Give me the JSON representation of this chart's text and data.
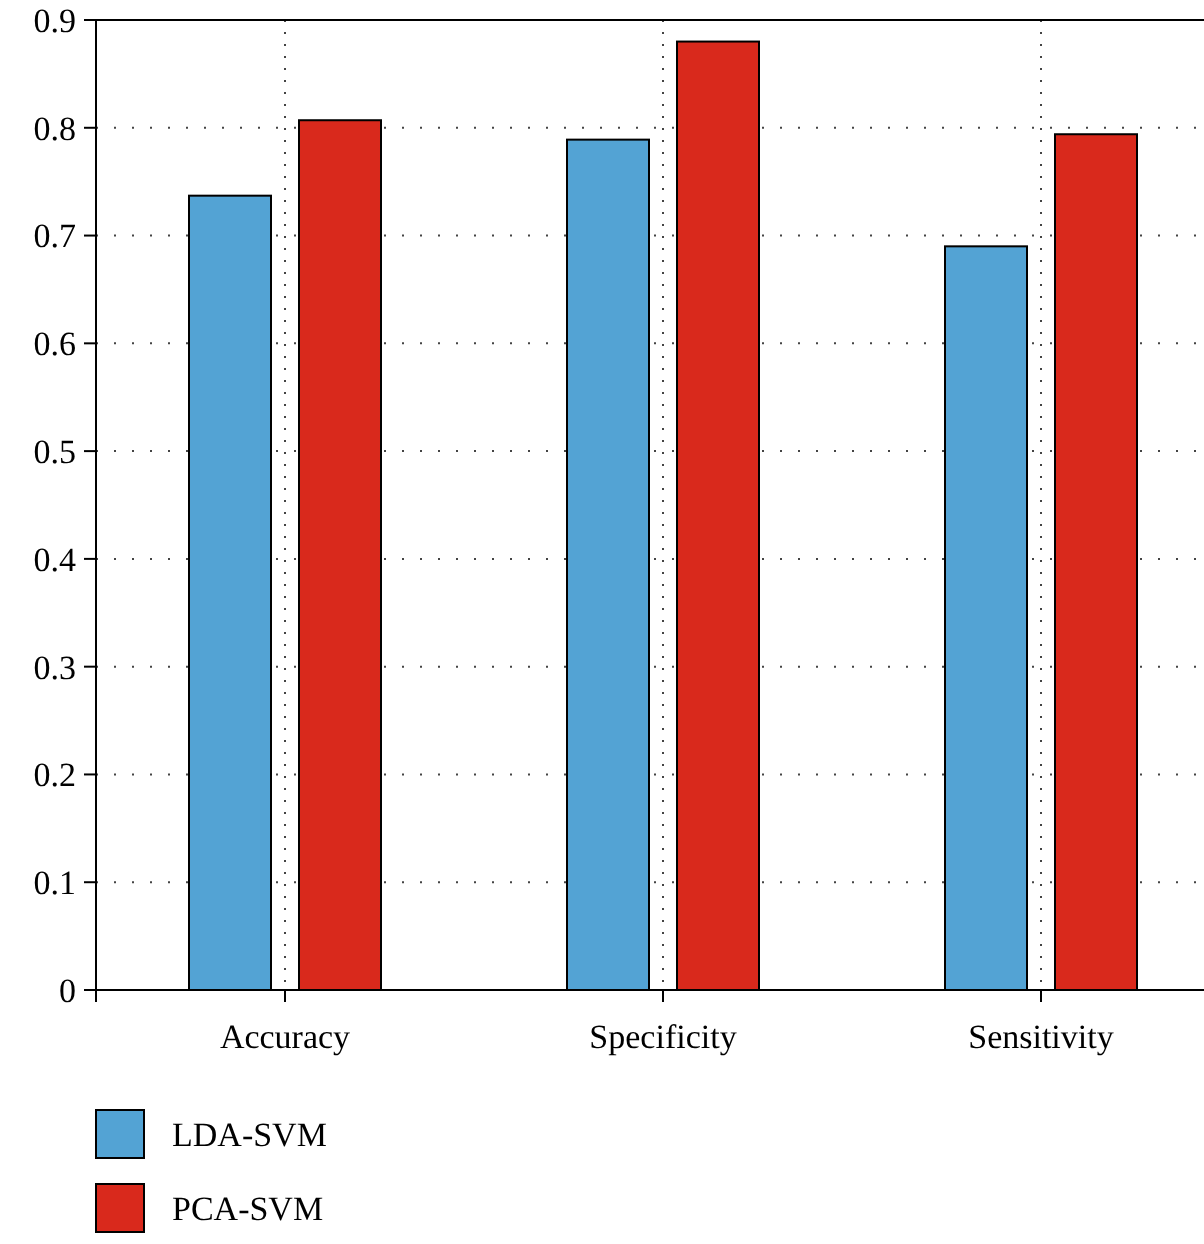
{
  "chart_data": {
    "type": "bar",
    "categories": [
      "Accuracy",
      "Specificity",
      "Sensitivity"
    ],
    "series": [
      {
        "name": "LDA-SVM",
        "color": "#53a3d4",
        "values": [
          0.737,
          0.789,
          0.69
        ]
      },
      {
        "name": "PCA-SVM",
        "color": "#d9291c",
        "values": [
          0.807,
          0.88,
          0.794
        ]
      }
    ],
    "ylim": [
      0,
      0.9
    ],
    "yticks": [
      0,
      0.1,
      0.2,
      0.3,
      0.4,
      0.5,
      0.6,
      0.7,
      0.8,
      0.9
    ],
    "grid": true,
    "legend": "bottom left"
  }
}
